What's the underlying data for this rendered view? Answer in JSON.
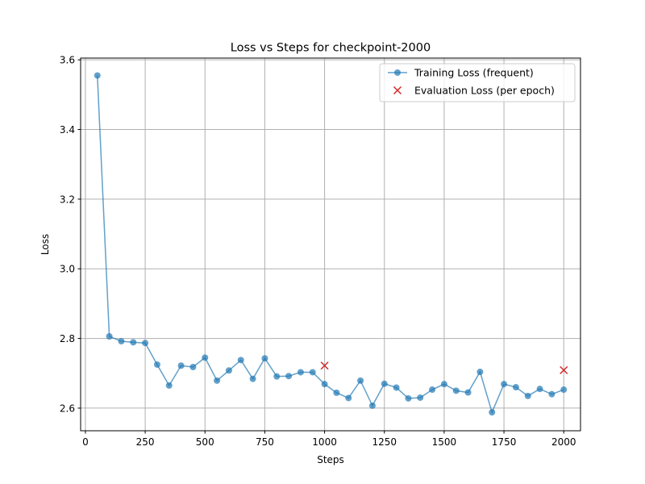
{
  "chart_data": {
    "type": "line",
    "title": "Loss vs Steps for checkpoint-2000",
    "xlabel": "Steps",
    "ylabel": "Loss",
    "xlim": [
      -20,
      2070
    ],
    "ylim": [
      2.535,
      3.605
    ],
    "xticks": [
      0,
      250,
      500,
      750,
      1000,
      1250,
      1500,
      1750,
      2000
    ],
    "yticks": [
      2.6,
      2.8,
      3.0,
      3.2,
      3.4,
      3.6
    ],
    "ytick_labels": [
      "2.6",
      "2.8",
      "3.0",
      "3.2",
      "3.4",
      "3.6"
    ],
    "grid": true,
    "legend_position": "top-right",
    "series": [
      {
        "name": "Training Loss (frequent)",
        "kind": "line-with-markers",
        "color": "#1f77b4",
        "x": [
          50,
          100,
          150,
          200,
          250,
          300,
          350,
          400,
          450,
          500,
          550,
          600,
          650,
          700,
          750,
          800,
          850,
          900,
          950,
          1000,
          1050,
          1100,
          1150,
          1200,
          1250,
          1300,
          1350,
          1400,
          1450,
          1500,
          1550,
          1600,
          1650,
          1700,
          1750,
          1800,
          1850,
          1900,
          1950,
          2000
        ],
        "y": [
          3.555,
          2.806,
          2.792,
          2.789,
          2.787,
          2.725,
          2.665,
          2.722,
          2.718,
          2.745,
          2.679,
          2.708,
          2.738,
          2.684,
          2.743,
          2.691,
          2.692,
          2.703,
          2.703,
          2.669,
          2.644,
          2.629,
          2.679,
          2.607,
          2.67,
          2.659,
          2.628,
          2.63,
          2.653,
          2.669,
          2.65,
          2.645,
          2.704,
          2.588,
          2.669,
          2.66,
          2.635,
          2.655,
          2.64,
          2.653
        ]
      },
      {
        "name": "Evaluation Loss (per epoch)",
        "kind": "scatter-x",
        "color": "#d62728",
        "x": [
          1000,
          2000
        ],
        "y": [
          2.722,
          2.709
        ]
      }
    ]
  }
}
